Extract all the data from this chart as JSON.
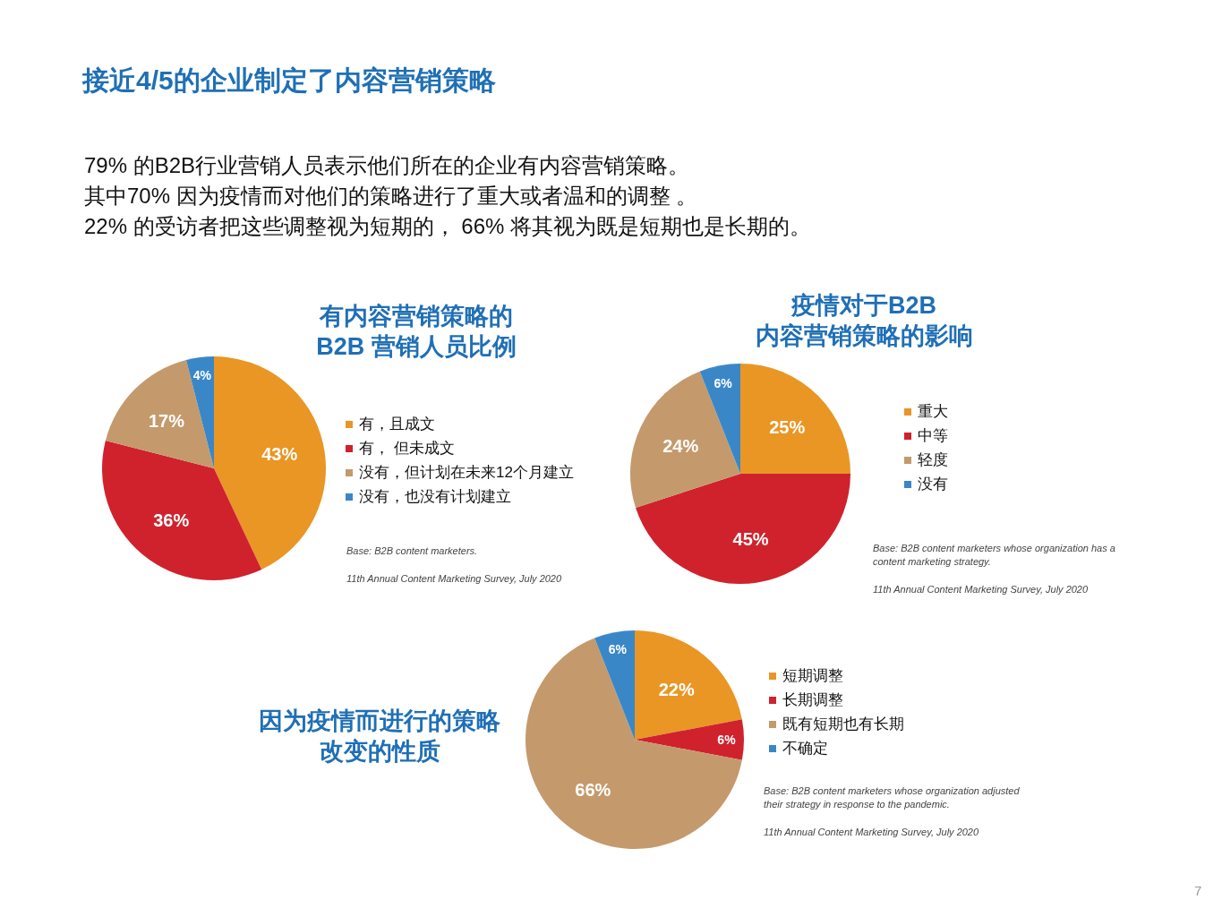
{
  "chart_data": [
    {
      "type": "other",
      "title": "接近4/5的企业制定了内容营销策略",
      "annotations": [
        "79% 的B2B行业营销人员表示他们所在的企业有内容营销策略。",
        "其中70% 因为疫情而对他们的策略进行了重大或者温和的调整 。",
        "22% 的受访者把这些调整视为短期的， 66% 将其视为既是短期也是长期的。",
        "7"
      ]
    },
    {
      "type": "pie",
      "title": "有内容营销策略的B2B 营销人员比例",
      "categories": [
        "有，且成文",
        "有， 但未成文",
        "没有，但计划在未来12个月建立",
        "没有，也没有计划建立"
      ],
      "values": [
        43,
        36,
        17,
        4
      ],
      "value_labels": [
        "43%",
        "36%",
        "17%",
        "4%"
      ],
      "colors": [
        "#e99625",
        "#d0222d",
        "#c49a6c",
        "#3a87c8"
      ],
      "legend": "right",
      "annotations": [
        "Base: B2B content marketers.",
        "11th Annual Content Marketing Survey, July 2020"
      ]
    },
    {
      "type": "pie",
      "title": "疫情对于B2B内容营销策略的影响",
      "categories": [
        "重大",
        "中等",
        "轻度",
        "没有"
      ],
      "values": [
        25,
        45,
        24,
        6
      ],
      "value_labels": [
        "25%",
        "45%",
        "24%",
        "6%"
      ],
      "colors": [
        "#e99625",
        "#d0222d",
        "#c49a6c",
        "#3a87c8"
      ],
      "legend": "right",
      "annotations": [
        "Base: B2B content marketers whose organization has a content marketing strategy.",
        "11th Annual Content Marketing Survey, July 2020"
      ]
    },
    {
      "type": "pie",
      "title": "因为疫情而进行的策略改变的性质",
      "categories": [
        "短期调整",
        "长期调整",
        "既有短期也有长期",
        "不确定"
      ],
      "values": [
        22,
        6,
        66,
        6
      ],
      "value_labels": [
        "22%",
        "6%",
        "66%",
        "6%"
      ],
      "colors": [
        "#e99625",
        "#d0222d",
        "#c49a6c",
        "#3a87c8"
      ],
      "legend": "right",
      "annotations": [
        "Base: B2B content marketers whose organization adjusted their strategy in response to the pandemic.",
        "11th Annual Content Marketing Survey, July 2020"
      ]
    }
  ]
}
